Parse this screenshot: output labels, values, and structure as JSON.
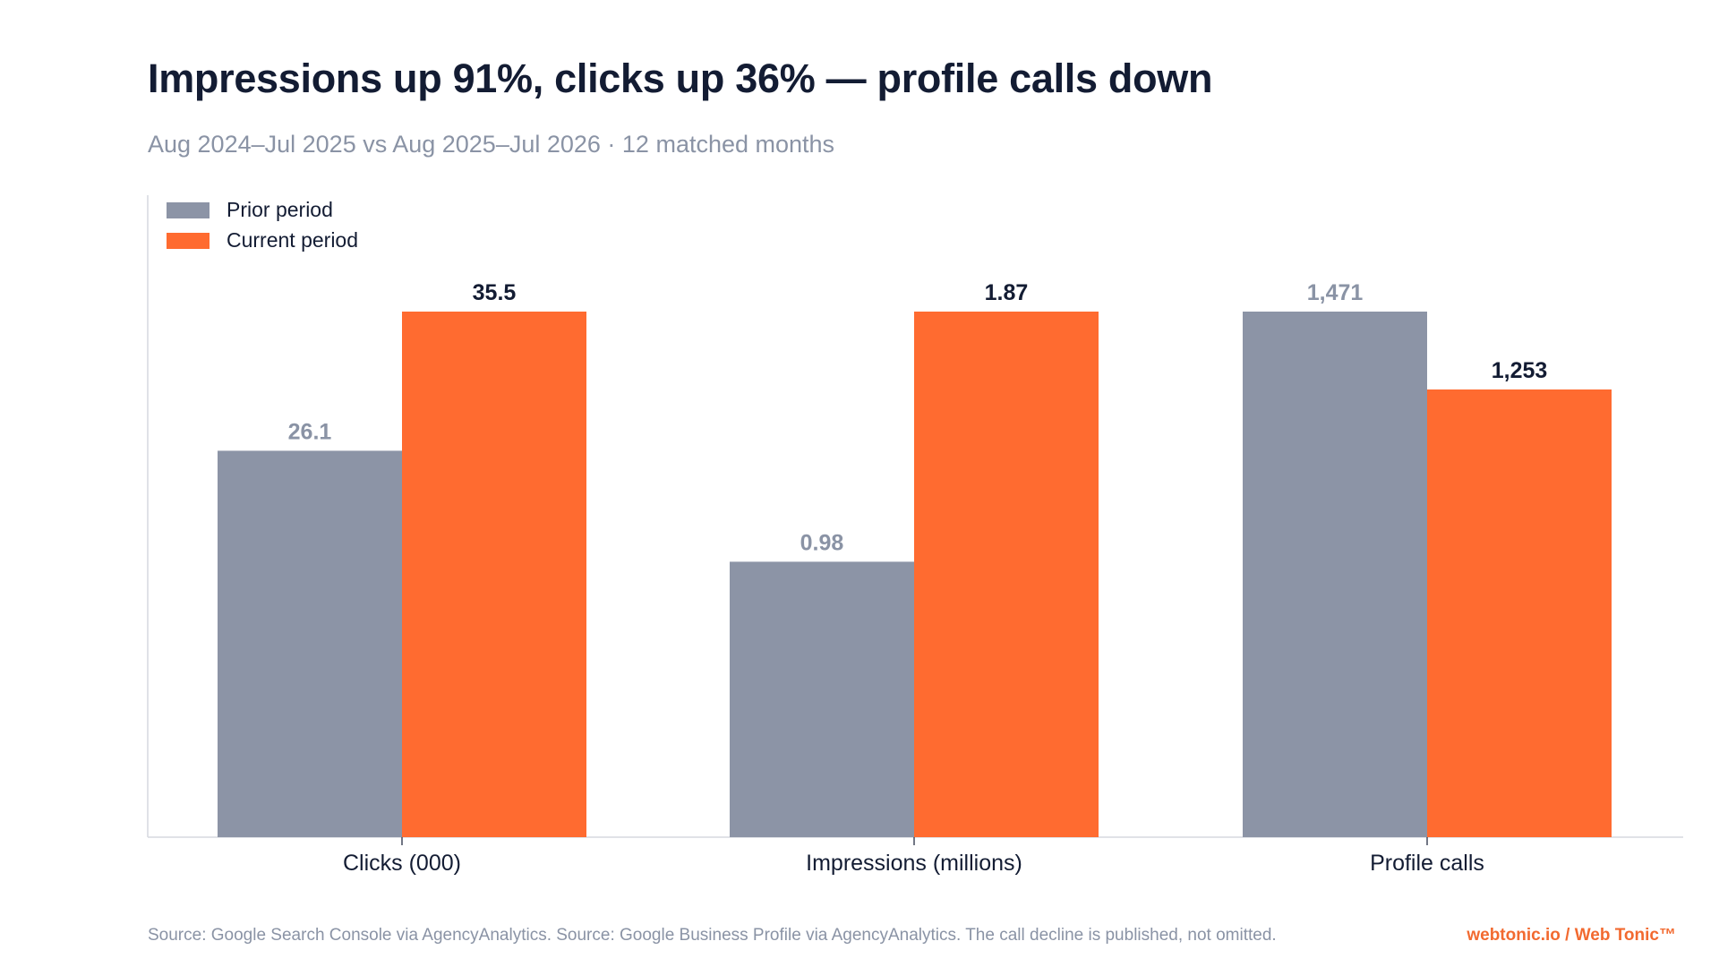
{
  "title": "Impressions up 91%, clicks up 36% — profile calls down",
  "subtitle": "Aug 2024–Jul 2025 vs Aug 2025–Jul 2026 · 12 matched months",
  "colors": {
    "prior": "#8c94a6",
    "current": "#ff6b30",
    "title": "#131c33",
    "muted": "#8a93a5",
    "axis": "#d6d9df",
    "brand": "#f26a30"
  },
  "chart_data": {
    "type": "bar",
    "title": "Impressions up 91%, clicks up 36% — profile calls down",
    "subtitle": "Aug 2024–Jul 2025 vs Aug 2025–Jul 2026 · 12 matched months",
    "xlabel": "",
    "ylabel": "",
    "grid": false,
    "legend_position": "top-left",
    "scale": "each category scaled independently (larger value = full height)",
    "categories": [
      "Clicks (000)",
      "Impressions (millions)",
      "Profile calls"
    ],
    "series": [
      {
        "name": "Prior period",
        "values": [
          26.1,
          0.98,
          1471
        ],
        "labels": [
          "26.1",
          "0.98",
          "1,471"
        ]
      },
      {
        "name": "Current period",
        "values": [
          35.5,
          1.87,
          1253
        ],
        "labels": [
          "35.5",
          "1.87",
          "1,253"
        ]
      }
    ]
  },
  "footer": {
    "source": "Source: Google Search Console via AgencyAnalytics. Source: Google Business Profile via AgencyAnalytics. The call decline is published, not omitted.",
    "brand": "webtonic.io / Web Tonic™"
  }
}
